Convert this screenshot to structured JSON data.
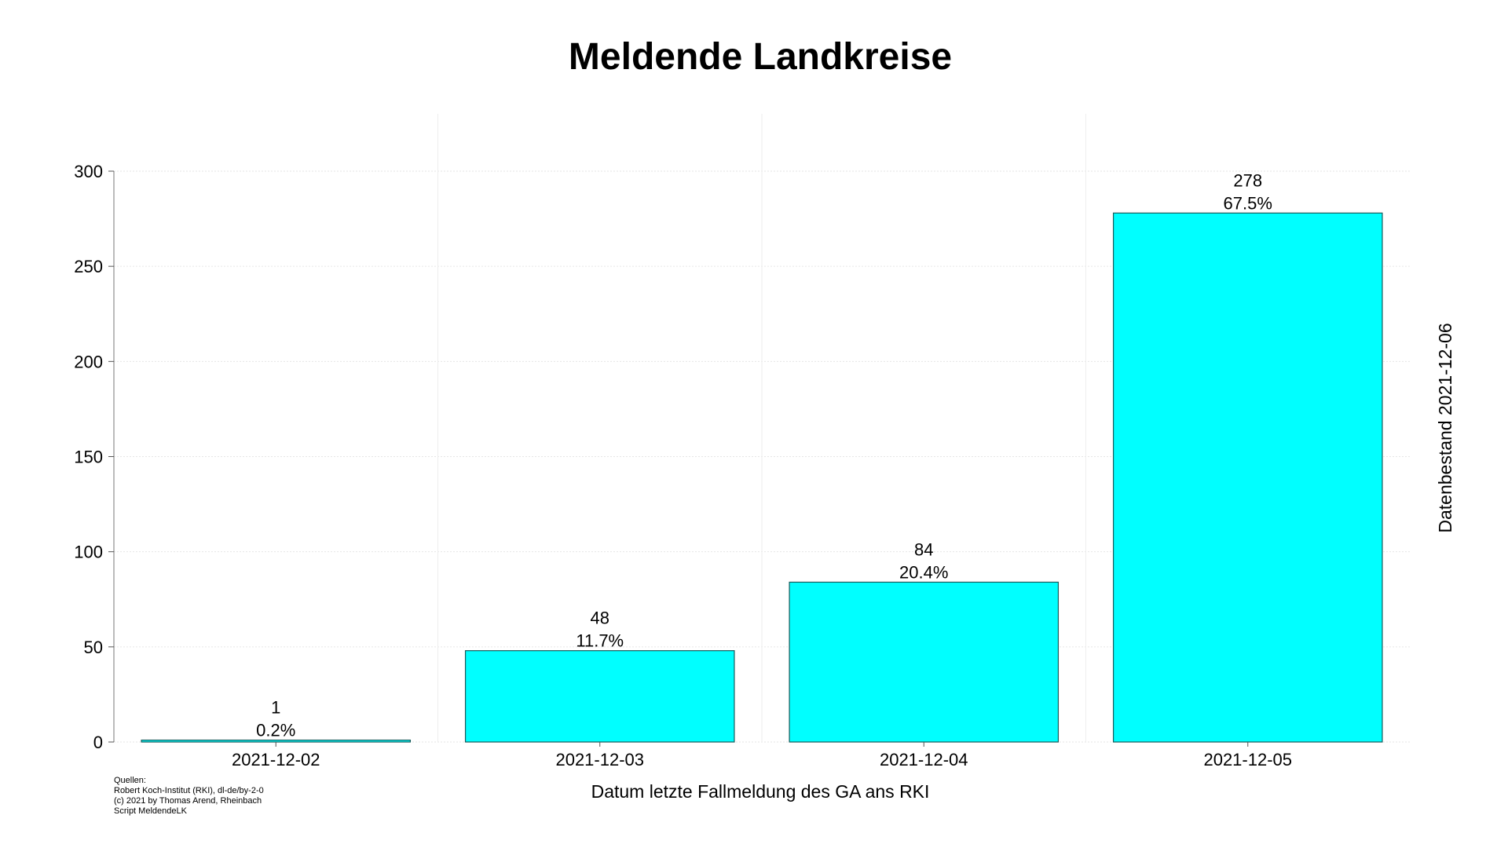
{
  "chart_data": {
    "type": "bar",
    "title": "Meldende Landkreise",
    "xlabel": "Datum letzte Fallmeldung des GA ans RKI",
    "ylabel": "",
    "right_label": "Datenbestand 2021-12-06",
    "categories": [
      "2021-12-02",
      "2021-12-03",
      "2021-12-04",
      "2021-12-05"
    ],
    "values": [
      1,
      48,
      84,
      278
    ],
    "percent_labels": [
      "0.2%",
      "11.7%",
      "20.4%",
      "67.5%"
    ],
    "ylim": [
      0,
      300
    ],
    "yticks": [
      0,
      50,
      100,
      150,
      200,
      250,
      300
    ],
    "bar_color": "#00FFFF",
    "bar_edge_color": "#1a5a5a",
    "grid": true
  },
  "sources": [
    "Quellen:",
    "Robert Koch-Institut (RKI), dl-de/by-2-0",
    "(c) 2021 by Thomas Arend, Rheinbach",
    "Script MeldendeLK"
  ]
}
